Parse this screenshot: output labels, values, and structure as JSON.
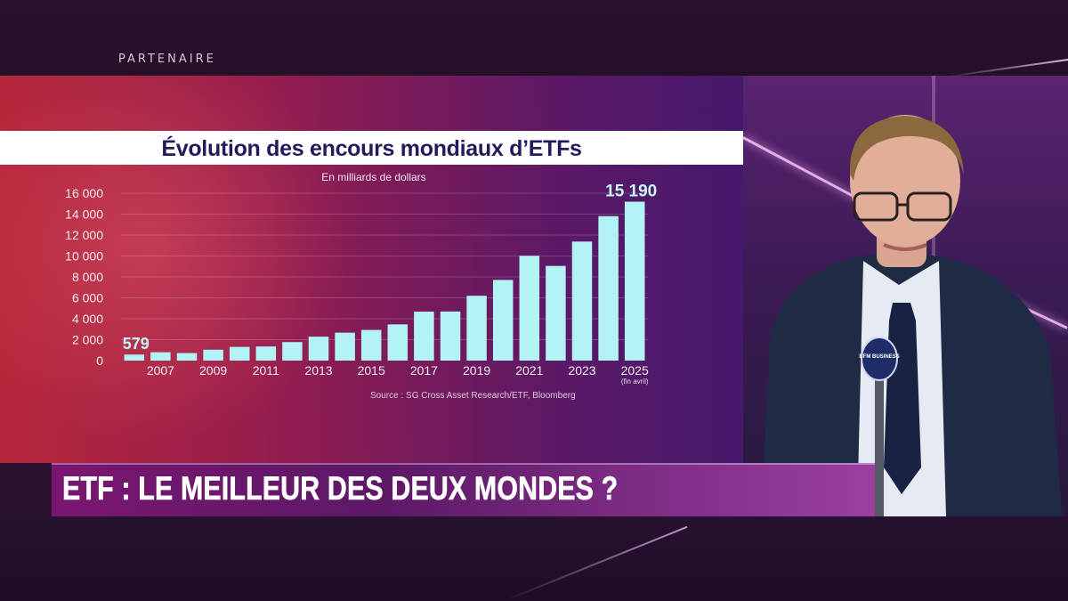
{
  "broadcast": {
    "partner_label": "PARTENAIRE",
    "headline": "ETF : LE MEILLEUR DES DEUX MONDES ?",
    "mic_logo": "BFM BUSINESS"
  },
  "chart_data": {
    "type": "bar",
    "title": "Évolution des encours mondiaux d’ETFs",
    "subtitle": "En milliards de dollars",
    "source": "Source : SG Cross Asset Research/ETF, Bloomberg",
    "categories": [
      "2006",
      "2007",
      "2008",
      "2009",
      "2010",
      "2011",
      "2012",
      "2013",
      "2014",
      "2015",
      "2016",
      "2017",
      "2018",
      "2019",
      "2020",
      "2021",
      "2022",
      "2023",
      "2024",
      "2025"
    ],
    "x_tick_labels": [
      "2007",
      "2009",
      "2011",
      "2013",
      "2015",
      "2017",
      "2019",
      "2021",
      "2023",
      "2025"
    ],
    "x_tick_note": "(fin avril)",
    "values": [
      579,
      800,
      720,
      1040,
      1310,
      1350,
      1770,
      2290,
      2670,
      2930,
      3460,
      4680,
      4690,
      6200,
      7710,
      10020,
      9050,
      11380,
      13810,
      15190
    ],
    "data_labels": [
      {
        "category": "2006",
        "text": "579"
      },
      {
        "category": "2025",
        "text": "15 190"
      }
    ],
    "y_tick_labels": [
      "0",
      "2 000",
      "4 000",
      "6 000",
      "8 000",
      "10 000",
      "12 000",
      "14 000",
      "16 000"
    ],
    "ylim": [
      0,
      16000
    ],
    "grid": true,
    "colors": {
      "bar": "#b3f2f5",
      "label": "#c8f6f8",
      "title": "#241a5c"
    }
  }
}
